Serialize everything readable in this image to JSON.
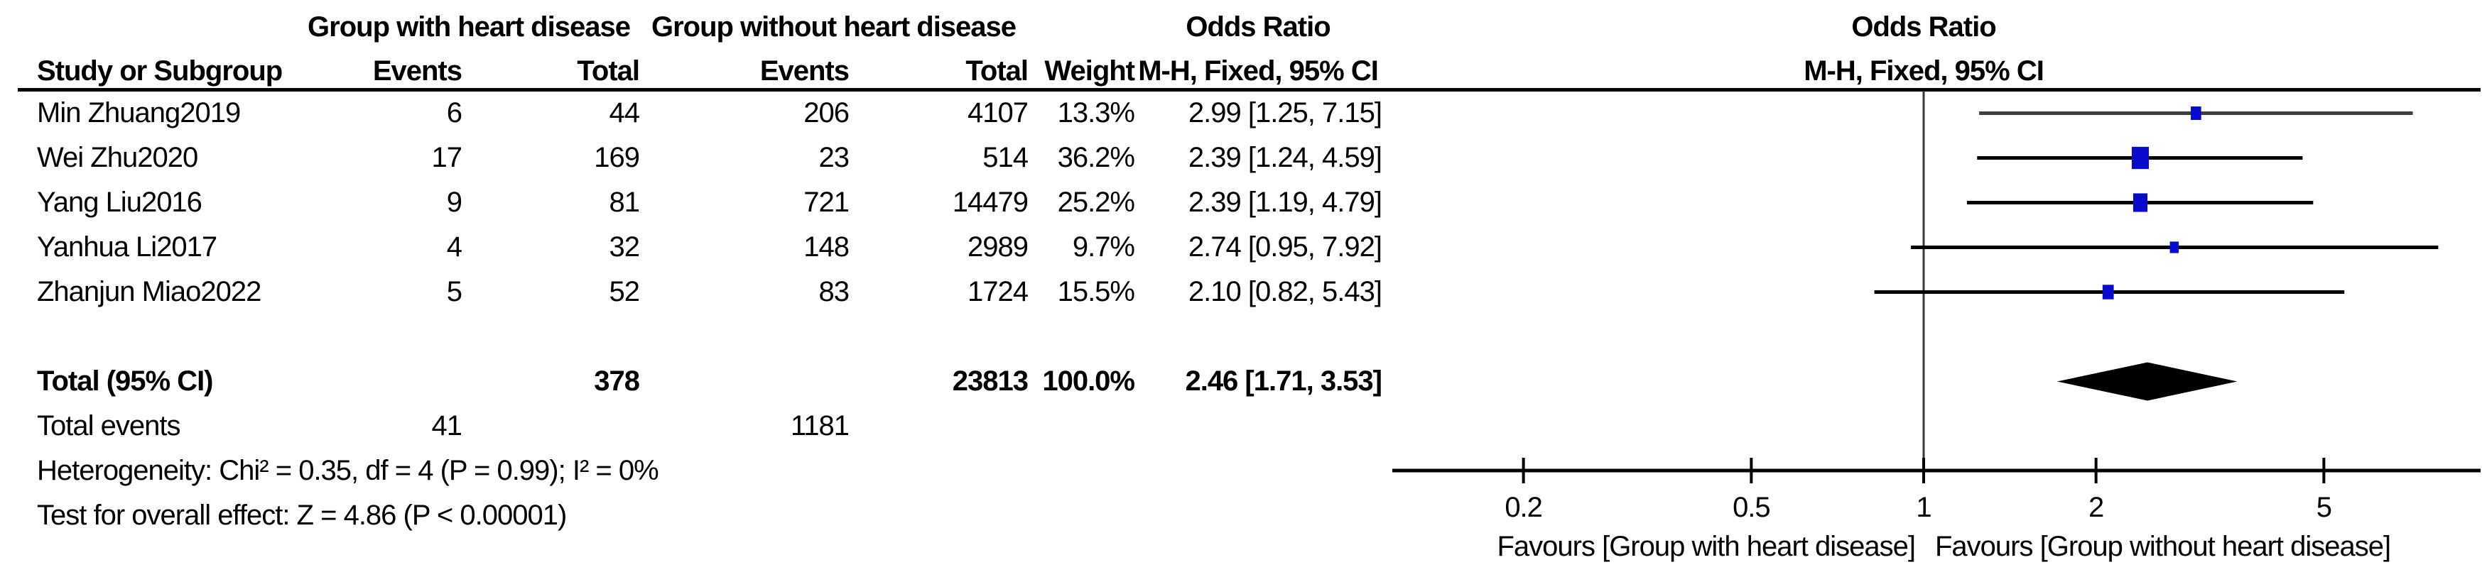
{
  "table": {
    "group1_header": "Group with heart disease",
    "group2_header": "Group without heart disease",
    "or_col_header_line1": "Odds Ratio",
    "or_col_header_line2": "M-H, Fixed, 95% CI",
    "study_header": "Study or Subgroup",
    "events_header": "Events",
    "total_header": "Total",
    "weight_header": "Weight",
    "rows": [
      {
        "study": "Min Zhuang2019",
        "e1": "6",
        "t1": "44",
        "e2": "206",
        "t2": "4107",
        "weight": "13.3%",
        "or_ci": "2.99 [1.25, 7.15]"
      },
      {
        "study": "Wei Zhu2020",
        "e1": "17",
        "t1": "169",
        "e2": "23",
        "t2": "514",
        "weight": "36.2%",
        "or_ci": "2.39 [1.24, 4.59]"
      },
      {
        "study": "Yang Liu2016",
        "e1": "9",
        "t1": "81",
        "e2": "721",
        "t2": "14479",
        "weight": "25.2%",
        "or_ci": "2.39 [1.19, 4.79]"
      },
      {
        "study": "Yanhua Li2017",
        "e1": "4",
        "t1": "32",
        "e2": "148",
        "t2": "2989",
        "weight": "9.7%",
        "or_ci": "2.74 [0.95, 7.92]"
      },
      {
        "study": "Zhanjun Miao2022",
        "e1": "5",
        "t1": "52",
        "e2": "83",
        "t2": "1724",
        "weight": "15.5%",
        "or_ci": "2.10 [0.82, 5.43]"
      }
    ],
    "total_row": {
      "label": "Total (95% CI)",
      "t1": "378",
      "t2": "23813",
      "weight": "100.0%",
      "or_ci": "2.46 [1.71, 3.53]"
    },
    "total_events_row": {
      "label": "Total events",
      "e1": "41",
      "e2": "1181"
    },
    "heterogeneity": "Heterogeneity: Chi² = 0.35, df = 4 (P = 0.99); I² = 0%",
    "overall_effect": "Test for overall effect: Z = 4.86 (P < 0.00001)"
  },
  "plot": {
    "header_line1": "Odds Ratio",
    "header_line2": "M-H, Fixed, 95% CI",
    "favours_left": "Favours [Group with heart disease]",
    "favours_right": "Favours [Group without heart disease]"
  },
  "chart_data": {
    "type": "forest",
    "effect_measure": "Odds Ratio, M-H, Fixed, 95% CI",
    "scale": "log10",
    "axis_ticks": [
      0.2,
      0.5,
      1,
      2,
      5
    ],
    "axis_range": [
      0.12,
      9
    ],
    "null_value": 1,
    "studies": [
      {
        "name": "Min Zhuang2019",
        "or": 2.99,
        "lo": 1.25,
        "hi": 7.15,
        "weight_pct": 13.3,
        "ci_color": "#3f3f3f"
      },
      {
        "name": "Wei Zhu2020",
        "or": 2.39,
        "lo": 1.24,
        "hi": 4.59,
        "weight_pct": 36.2,
        "ci_color": "#000000"
      },
      {
        "name": "Yang Liu2016",
        "or": 2.39,
        "lo": 1.19,
        "hi": 4.79,
        "weight_pct": 25.2,
        "ci_color": "#000000"
      },
      {
        "name": "Yanhua Li2017",
        "or": 2.74,
        "lo": 0.95,
        "hi": 7.92,
        "weight_pct": 9.7,
        "ci_color": "#000000"
      },
      {
        "name": "Zhanjun Miao2022",
        "or": 2.1,
        "lo": 0.82,
        "hi": 5.43,
        "weight_pct": 15.5,
        "ci_color": "#000000"
      }
    ],
    "total": {
      "or": 2.46,
      "lo": 1.71,
      "hi": 3.53,
      "weight_pct": 100.0
    },
    "marker_color": "#0a0acc",
    "diamond_color": "#000000",
    "axis_color": "#000000",
    "null_line_color": "#3a3a3a"
  }
}
